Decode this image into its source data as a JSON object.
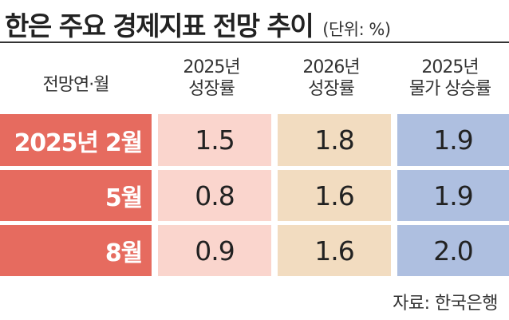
{
  "title": "한은 주요 경제지표 전망 추이",
  "unit": "(단위: %)",
  "table": {
    "corner_label": "전망연·월",
    "columns": [
      {
        "line1": "2025년",
        "line2": "성장률"
      },
      {
        "line1": "2026년",
        "line2": "성장률"
      },
      {
        "line1": "2025년",
        "line2": "물가 상승률"
      }
    ],
    "rows": [
      {
        "label": "2025년 2월",
        "values": [
          "1.5",
          "1.8",
          "1.9"
        ]
      },
      {
        "label": "5월",
        "values": [
          "0.8",
          "1.6",
          "1.9"
        ]
      },
      {
        "label": "8월",
        "values": [
          "0.9",
          "1.6",
          "2.0"
        ]
      }
    ]
  },
  "source": "자료: 한국은행",
  "colors": {
    "row_label": "#e66b5f",
    "col1": "#fad5cd",
    "col2": "#f2dcc0",
    "col3": "#aebfe0"
  }
}
